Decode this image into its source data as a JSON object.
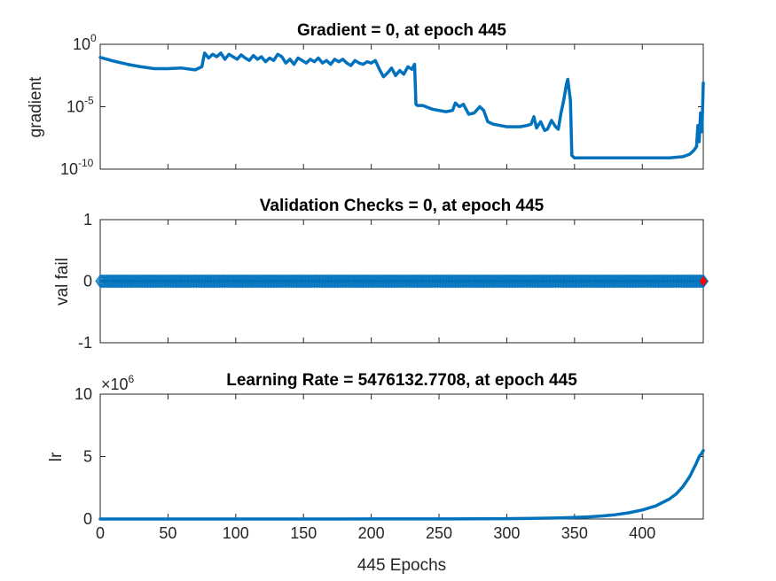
{
  "chart_data": [
    {
      "type": "line",
      "title": "Gradient = 0, at epoch 445",
      "ylabel": "gradient",
      "xlabel": "",
      "yscale": "log",
      "xlim": [
        0,
        445
      ],
      "ylim_exp": [
        -10,
        0
      ],
      "y_ticks": [
        {
          "base": "10",
          "exp": "0",
          "value": 1
        },
        {
          "base": "10",
          "exp": "-5",
          "value": 1e-05
        },
        {
          "base": "10",
          "exp": "-10",
          "value": 1e-10
        }
      ],
      "color": "#0072bd",
      "series": [
        {
          "x": [
            0,
            10,
            20,
            30,
            40,
            50,
            60,
            70,
            75,
            77,
            80,
            83,
            86,
            89,
            92,
            95,
            98,
            101,
            104,
            107,
            110,
            113,
            116,
            119,
            122,
            125,
            128,
            131,
            134,
            137,
            140,
            143,
            146,
            149,
            152,
            155,
            158,
            161,
            164,
            167,
            170,
            173,
            176,
            179,
            182,
            185,
            188,
            191,
            194,
            197,
            200,
            203,
            206,
            209,
            212,
            215,
            218,
            221,
            224,
            227,
            230,
            232,
            233,
            234,
            238,
            245,
            255,
            260,
            262,
            265,
            268,
            272,
            276,
            280,
            283,
            286,
            290,
            295,
            300,
            305,
            310,
            315,
            318,
            320,
            322,
            325,
            328,
            330,
            333,
            336,
            338,
            340,
            342,
            344,
            345,
            347,
            348,
            350,
            360,
            380,
            400,
            420,
            430,
            435,
            438,
            440,
            441,
            442,
            443,
            444,
            445
          ],
          "y": [
            -1.05,
            -1.35,
            -1.6,
            -1.8,
            -1.95,
            -1.95,
            -1.9,
            -2.05,
            -1.8,
            -0.7,
            -1.1,
            -0.8,
            -1.0,
            -0.7,
            -1.2,
            -0.8,
            -1.0,
            -1.2,
            -0.85,
            -1.1,
            -1.3,
            -0.9,
            -1.2,
            -1.0,
            -1.4,
            -1.1,
            -1.3,
            -0.8,
            -1.0,
            -1.5,
            -1.2,
            -1.6,
            -1.1,
            -1.3,
            -1.5,
            -1.2,
            -1.4,
            -1.1,
            -1.5,
            -1.3,
            -1.6,
            -1.2,
            -1.4,
            -1.2,
            -1.5,
            -1.7,
            -1.3,
            -1.5,
            -1.6,
            -1.4,
            -1.5,
            -1.3,
            -2.0,
            -2.6,
            -2.3,
            -1.9,
            -2.5,
            -2.1,
            -2.4,
            -1.8,
            -2.0,
            -1.6,
            -4.8,
            -4.9,
            -4.9,
            -5.2,
            -5.4,
            -5.3,
            -4.7,
            -5.0,
            -4.8,
            -5.6,
            -5.5,
            -5.0,
            -5.3,
            -6.2,
            -6.4,
            -6.5,
            -6.6,
            -6.6,
            -6.6,
            -6.5,
            -6.4,
            -5.8,
            -6.7,
            -6.2,
            -6.9,
            -6.8,
            -6.1,
            -6.6,
            -6.8,
            -5.5,
            -4.5,
            -3.2,
            -2.8,
            -4.5,
            -8.9,
            -9.1,
            -9.1,
            -9.1,
            -9.1,
            -9.1,
            -9.0,
            -8.8,
            -8.5,
            -8.2,
            -6.5,
            -7.8,
            -5.5,
            -7.0,
            -3.1
          ]
        }
      ]
    },
    {
      "type": "line",
      "title": "Validation Checks = 0, at epoch 445",
      "ylabel": "val fail",
      "xlabel": "",
      "xlim": [
        0,
        445
      ],
      "ylim": [
        -1,
        1
      ],
      "y_ticks": [
        "1",
        "0",
        "-1"
      ],
      "y_tick_values": [
        1,
        0,
        -1
      ],
      "color": "#0072bd",
      "marker": "diamond",
      "highlight": {
        "epoch": 445,
        "value": 0,
        "color": "#ff0000"
      },
      "series": [
        {
          "x_start": 0,
          "x_end": 445,
          "value": 0
        }
      ]
    },
    {
      "type": "line",
      "title": "Learning Rate = 5476132.7708, at epoch 445",
      "ylabel": "lr",
      "xlabel": "445 Epochs",
      "xlim": [
        0,
        445
      ],
      "ylim": [
        0,
        10
      ],
      "y_multiplier": {
        "base": "×10",
        "exp": "6"
      },
      "y_ticks": [
        "10",
        "5",
        "0"
      ],
      "y_tick_values": [
        10,
        5,
        0
      ],
      "x_ticks": [
        "0",
        "50",
        "100",
        "150",
        "200",
        "250",
        "300",
        "350",
        "400"
      ],
      "x_tick_values": [
        0,
        50,
        100,
        150,
        200,
        250,
        300,
        350,
        400
      ],
      "color": "#0072bd",
      "series": [
        {
          "x": [
            0,
            50,
            100,
            150,
            200,
            250,
            300,
            320,
            340,
            350,
            360,
            370,
            380,
            390,
            400,
            410,
            420,
            425,
            430,
            435,
            440,
            442,
            444,
            445
          ],
          "y": [
            0.0,
            0.0,
            0.0,
            0.0,
            0.005,
            0.01,
            0.03,
            0.05,
            0.09,
            0.12,
            0.17,
            0.24,
            0.34,
            0.5,
            0.72,
            1.05,
            1.6,
            2.0,
            2.6,
            3.4,
            4.5,
            5.0,
            5.3,
            5.48
          ]
        }
      ]
    }
  ]
}
